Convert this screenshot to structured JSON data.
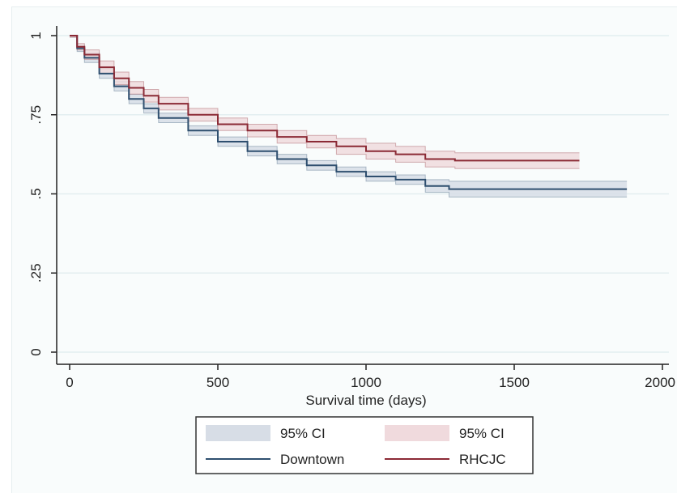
{
  "chart_data": {
    "type": "line",
    "title": "",
    "xlabel": "Survival time (days)",
    "ylabel": "",
    "xlim": [
      0,
      2000
    ],
    "ylim": [
      0,
      1
    ],
    "x_ticks": [
      0,
      500,
      1000,
      1500,
      2000
    ],
    "x_tick_labels": [
      "0",
      "500",
      "1000",
      "1500",
      "2000"
    ],
    "y_ticks": [
      0,
      0.25,
      0.5,
      0.75,
      1
    ],
    "y_tick_labels": [
      "0",
      ".25",
      ".5",
      ".75",
      "1"
    ],
    "grid": true,
    "legend_position": "bottom",
    "series": [
      {
        "name": "Downtown",
        "color": "#2f4f6f",
        "ci_color": "#d7dde6",
        "x": [
          0,
          25,
          50,
          100,
          150,
          200,
          250,
          300,
          400,
          500,
          600,
          700,
          800,
          900,
          1000,
          1100,
          1200,
          1280,
          1880
        ],
        "values": [
          1.0,
          0.96,
          0.93,
          0.88,
          0.84,
          0.8,
          0.77,
          0.74,
          0.7,
          0.665,
          0.635,
          0.61,
          0.59,
          0.57,
          0.555,
          0.545,
          0.525,
          0.515,
          0.515
        ],
        "ci_lower": [
          0.995,
          0.95,
          0.915,
          0.865,
          0.825,
          0.785,
          0.755,
          0.725,
          0.685,
          0.65,
          0.62,
          0.595,
          0.575,
          0.555,
          0.54,
          0.53,
          0.505,
          0.49,
          0.49
        ],
        "ci_upper": [
          1.0,
          0.97,
          0.945,
          0.895,
          0.855,
          0.815,
          0.785,
          0.755,
          0.715,
          0.68,
          0.65,
          0.625,
          0.605,
          0.585,
          0.57,
          0.56,
          0.545,
          0.54,
          0.54
        ]
      },
      {
        "name": "RHCJC",
        "color": "#8b2a35",
        "ci_color": "#f0dadd",
        "x": [
          0,
          25,
          50,
          100,
          150,
          200,
          250,
          300,
          400,
          500,
          600,
          700,
          800,
          900,
          1000,
          1100,
          1200,
          1300,
          1720
        ],
        "values": [
          1.0,
          0.965,
          0.94,
          0.9,
          0.865,
          0.835,
          0.81,
          0.785,
          0.75,
          0.72,
          0.7,
          0.68,
          0.665,
          0.65,
          0.635,
          0.625,
          0.61,
          0.605,
          0.605
        ],
        "ci_lower": [
          0.995,
          0.955,
          0.925,
          0.88,
          0.845,
          0.815,
          0.79,
          0.765,
          0.73,
          0.7,
          0.68,
          0.66,
          0.645,
          0.625,
          0.61,
          0.6,
          0.585,
          0.58,
          0.58
        ],
        "ci_upper": [
          1.0,
          0.975,
          0.955,
          0.92,
          0.885,
          0.855,
          0.83,
          0.805,
          0.77,
          0.74,
          0.72,
          0.7,
          0.685,
          0.675,
          0.66,
          0.65,
          0.635,
          0.63,
          0.63
        ]
      }
    ]
  },
  "legend": {
    "items": [
      {
        "label": "95% CI",
        "kind": "band",
        "color": "#d7dde6"
      },
      {
        "label": "95% CI",
        "kind": "band",
        "color": "#f0dadd"
      },
      {
        "label": "Downtown",
        "kind": "line",
        "color": "#2f4f6f"
      },
      {
        "label": "RHCJC",
        "kind": "line",
        "color": "#8b2a35"
      }
    ]
  }
}
